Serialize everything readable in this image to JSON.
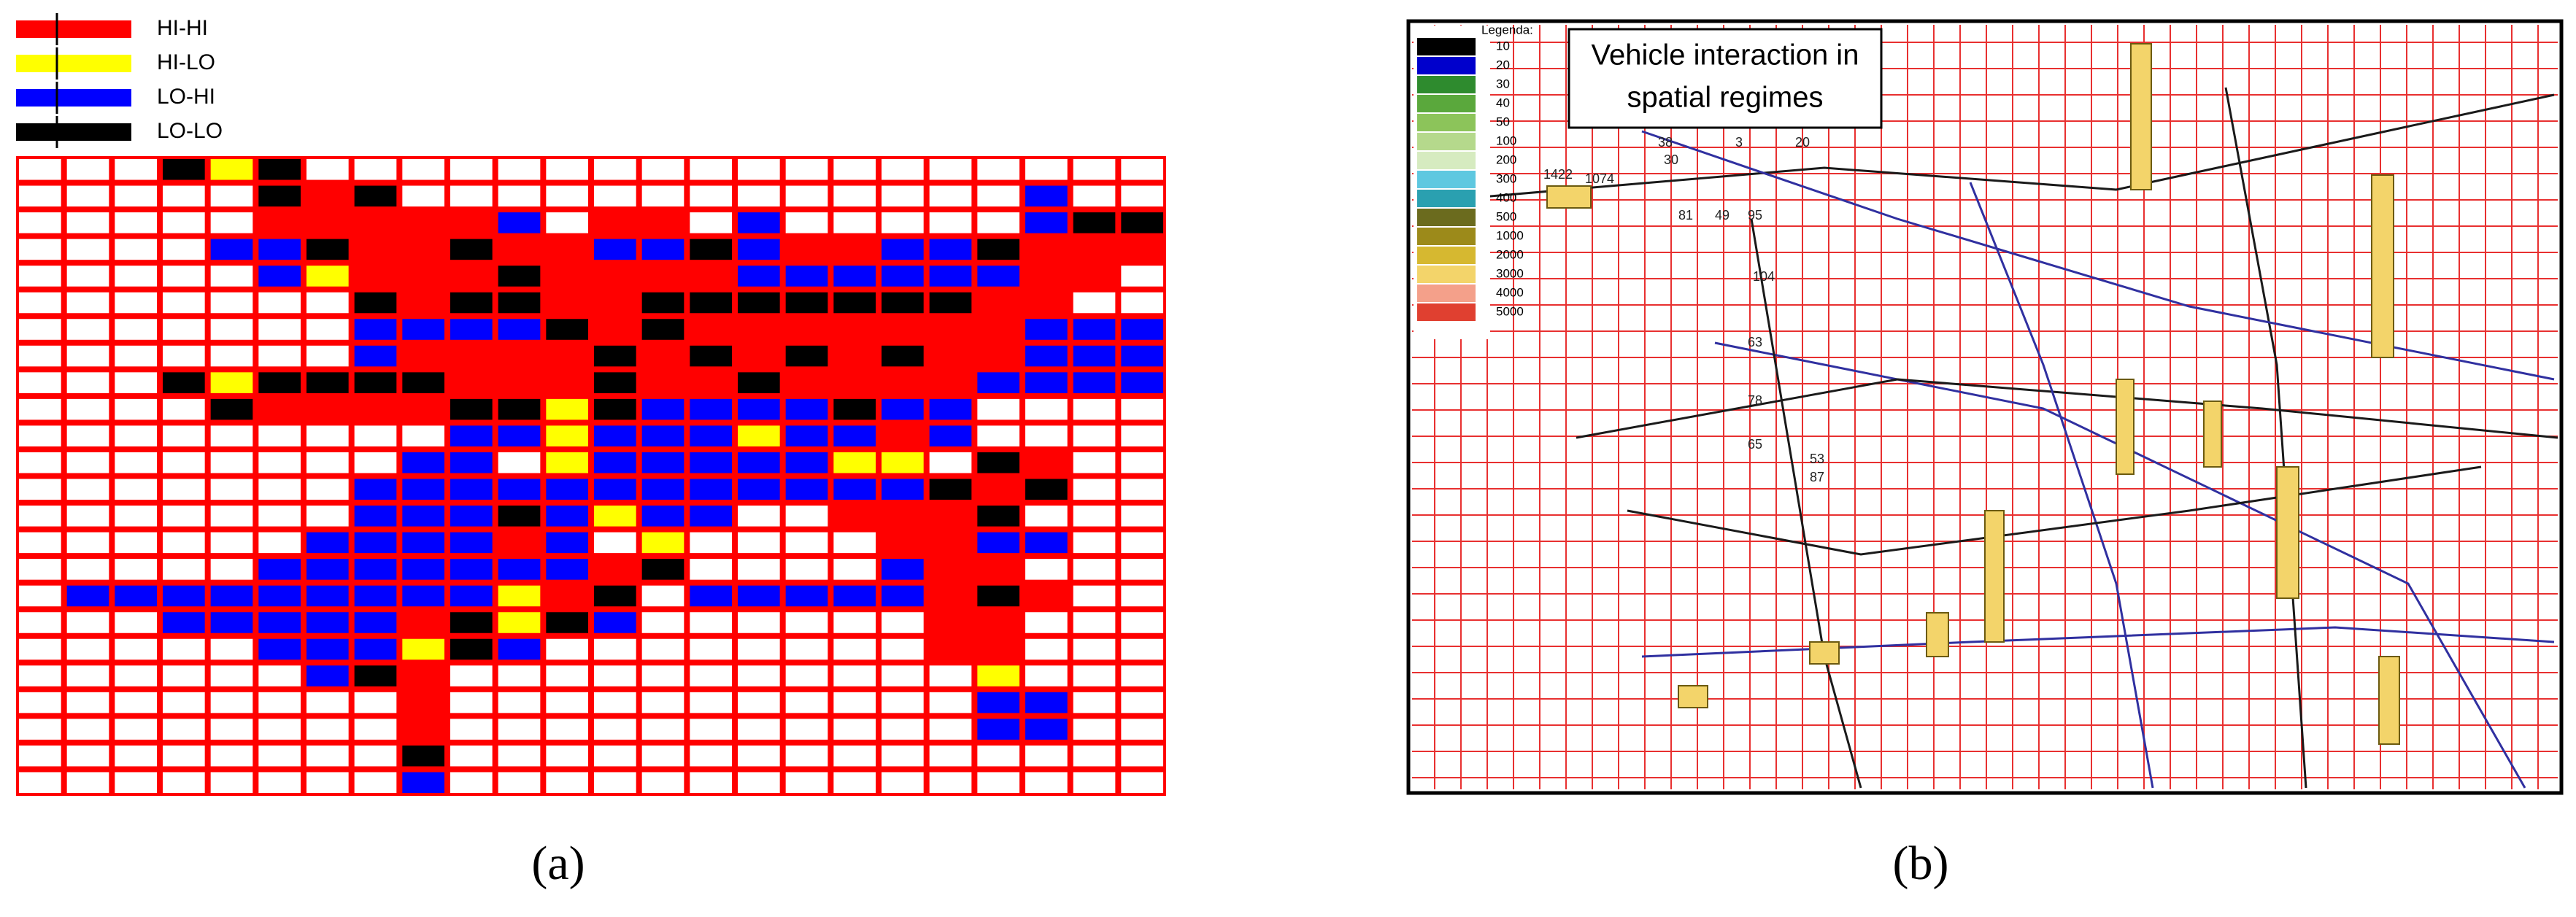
{
  "panel_a": {
    "legend": [
      {
        "label": "HI-HI",
        "color": "#ff0000"
      },
      {
        "label": "HI-LO",
        "color": "#ffff00"
      },
      {
        "label": "LO-HI",
        "color": "#0000ff"
      },
      {
        "label": "LO-LO",
        "color": "#000000"
      }
    ],
    "caption": "(a)"
  },
  "panel_b": {
    "title_lines": [
      "Vehicle interaction in",
      "spatial regimes"
    ],
    "legend_title": "Legenda:",
    "legend": [
      {
        "label": "10",
        "color": "#000000"
      },
      {
        "label": "20",
        "color": "#0000cc"
      },
      {
        "label": "30",
        "color": "#2e8b2e"
      },
      {
        "label": "40",
        "color": "#5aa83c"
      },
      {
        "label": "50",
        "color": "#8cc45a"
      },
      {
        "label": "100",
        "color": "#b5d98c"
      },
      {
        "label": "200",
        "color": "#d6ebc0"
      },
      {
        "label": "300",
        "color": "#5ec8e0"
      },
      {
        "label": "400",
        "color": "#2aa0b0"
      },
      {
        "label": "500",
        "color": "#6b6b1e"
      },
      {
        "label": "1000",
        "color": "#9c8a1a"
      },
      {
        "label": "2000",
        "color": "#d6b830"
      },
      {
        "label": "3000",
        "color": "#f3d46a"
      },
      {
        "label": "4000",
        "color": "#f4a08a"
      },
      {
        "label": "5000",
        "color": "#e04030"
      }
    ],
    "map_labels": [
      "1422",
      "1074",
      "38",
      "30",
      "3",
      "20",
      "81",
      "49",
      "95",
      "104",
      "63",
      "78",
      "65",
      "53",
      "87"
    ],
    "caption": "(b)"
  }
}
